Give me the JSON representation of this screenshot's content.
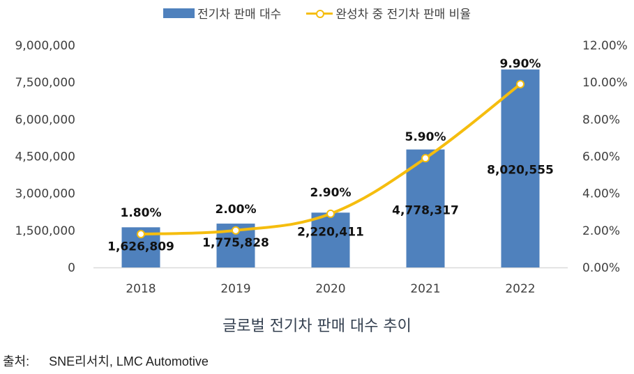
{
  "chart_data": {
    "type": "bar",
    "title": "글로벌 전기차 판매 대수 추이",
    "categories": [
      "2018",
      "2019",
      "2020",
      "2021",
      "2022"
    ],
    "series": [
      {
        "name": "전기차 판매 대수",
        "type": "bar",
        "axis": "left",
        "color": "#4F81BD",
        "values": [
          1626809,
          1775828,
          2220411,
          4778317,
          8020555
        ],
        "labels": [
          "1,626,809",
          "1,775,828",
          "2,220,411",
          "4,778,317",
          "8,020,555"
        ]
      },
      {
        "name": "완성차 중 전기차 판매 비율",
        "type": "line",
        "axis": "right",
        "color": "#F5BD0E",
        "values": [
          1.8,
          2.0,
          2.9,
          5.9,
          9.9
        ],
        "labels": [
          "1.80%",
          "2.00%",
          "2.90%",
          "5.90%",
          "9.90%"
        ]
      }
    ],
    "y_left": {
      "range": [
        0,
        9000000
      ],
      "ticks": [
        0,
        1500000,
        3000000,
        4500000,
        6000000,
        7500000,
        9000000
      ],
      "tick_labels": [
        "0",
        "1,500,000",
        "3,000,000",
        "4,500,000",
        "6,000,000",
        "7,500,000",
        "9,000,000"
      ]
    },
    "y_right": {
      "range": [
        0,
        12
      ],
      "ticks": [
        0,
        2,
        4,
        6,
        8,
        10,
        12
      ],
      "tick_labels": [
        "0.00%",
        "2.00%",
        "4.00%",
        "6.00%",
        "8.00%",
        "10.00%",
        "12.00%"
      ]
    },
    "grid": false,
    "legend": "top-center"
  },
  "legend": {
    "bar_label": "전기차 판매 대수",
    "line_label": "완성차 중 전기차 판매 비율"
  },
  "caption": "글로벌 전기차 판매 대수 추이",
  "source": {
    "label": "출처:",
    "text": "SNE리서치, LMC Automotive"
  }
}
